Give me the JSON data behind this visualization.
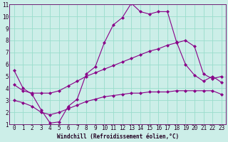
{
  "xlabel": "Windchill (Refroidissement éolien,°C)",
  "xlim": [
    -0.5,
    23.5
  ],
  "ylim": [
    1,
    11
  ],
  "xticks": [
    0,
    1,
    2,
    3,
    4,
    5,
    6,
    7,
    8,
    9,
    10,
    11,
    12,
    13,
    14,
    15,
    16,
    17,
    18,
    19,
    20,
    21,
    22,
    23
  ],
  "yticks": [
    1,
    2,
    3,
    4,
    5,
    6,
    7,
    8,
    9,
    10,
    11
  ],
  "bg_color": "#cceee8",
  "grid_color": "#99ddcc",
  "line_color": "#880088",
  "line1_x": [
    0,
    1,
    2,
    3,
    4,
    5,
    6,
    7,
    8,
    9,
    10,
    11,
    12,
    13,
    14,
    15,
    16,
    17,
    18,
    19,
    20,
    21,
    22,
    23
  ],
  "line1_y": [
    5.5,
    4.0,
    3.5,
    2.2,
    1.1,
    1.2,
    2.5,
    3.1,
    5.2,
    5.8,
    7.8,
    9.3,
    9.9,
    11.1,
    10.4,
    10.2,
    10.4,
    10.4,
    7.9,
    6.0,
    5.1,
    4.6,
    5.0,
    4.5
  ],
  "line2_x": [
    0,
    1,
    2,
    3,
    4,
    5,
    6,
    7,
    8,
    9,
    10,
    11,
    12,
    13,
    14,
    15,
    16,
    17,
    18,
    19,
    20,
    21,
    22,
    23
  ],
  "line2_y": [
    4.3,
    3.8,
    3.6,
    3.6,
    3.6,
    3.8,
    4.2,
    4.6,
    5.0,
    5.3,
    5.6,
    5.9,
    6.2,
    6.5,
    6.8,
    7.1,
    7.3,
    7.6,
    7.8,
    8.0,
    7.5,
    5.2,
    4.8,
    5.0
  ],
  "line3_x": [
    0,
    1,
    2,
    3,
    4,
    5,
    6,
    7,
    8,
    9,
    10,
    11,
    12,
    13,
    14,
    15,
    16,
    17,
    18,
    19,
    20,
    21,
    22,
    23
  ],
  "line3_y": [
    3.0,
    2.8,
    2.5,
    2.0,
    1.8,
    2.0,
    2.3,
    2.6,
    2.9,
    3.1,
    3.3,
    3.4,
    3.5,
    3.6,
    3.6,
    3.7,
    3.7,
    3.7,
    3.8,
    3.8,
    3.8,
    3.8,
    3.8,
    3.5
  ]
}
